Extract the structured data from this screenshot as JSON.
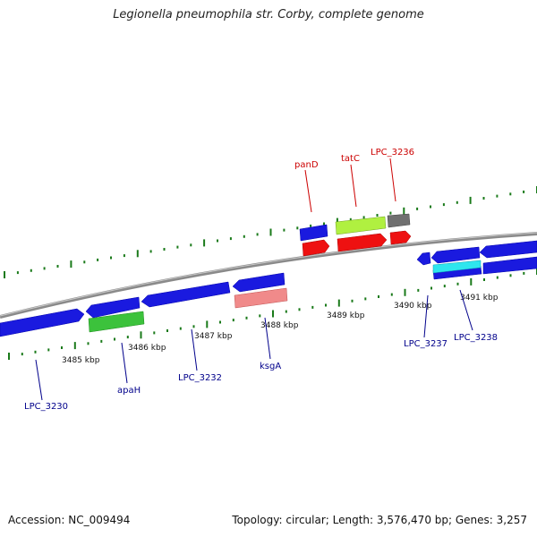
{
  "title": "Legionella pneumophila str. Corby, complete genome",
  "footer": {
    "accession": "Accession: NC_009494",
    "summary": "Topology: circular; Length: 3,576,470 bp; Genes: 3,257"
  },
  "colors": {
    "backbone": "#8a8a8a",
    "tick": "#1a7a1a",
    "label_forward": "#cc0000",
    "label_reverse": "#00008b"
  },
  "scale_labels": [
    "3485 kbp",
    "3486 kbp",
    "3487 kbp",
    "3488 kbp",
    "3489 kbp",
    "3490 kbp",
    "3491 kbp"
  ],
  "gene_labels": {
    "panD": "panD",
    "tatC": "tatC",
    "LPC_3236": "LPC_3236",
    "LPC_3230": "LPC_3230",
    "apaH": "apaH",
    "LPC_3232": "LPC_3232",
    "ksgA": "ksgA",
    "LPC_3237": "LPC_3237",
    "LPC_3238": "LPC_3238"
  }
}
